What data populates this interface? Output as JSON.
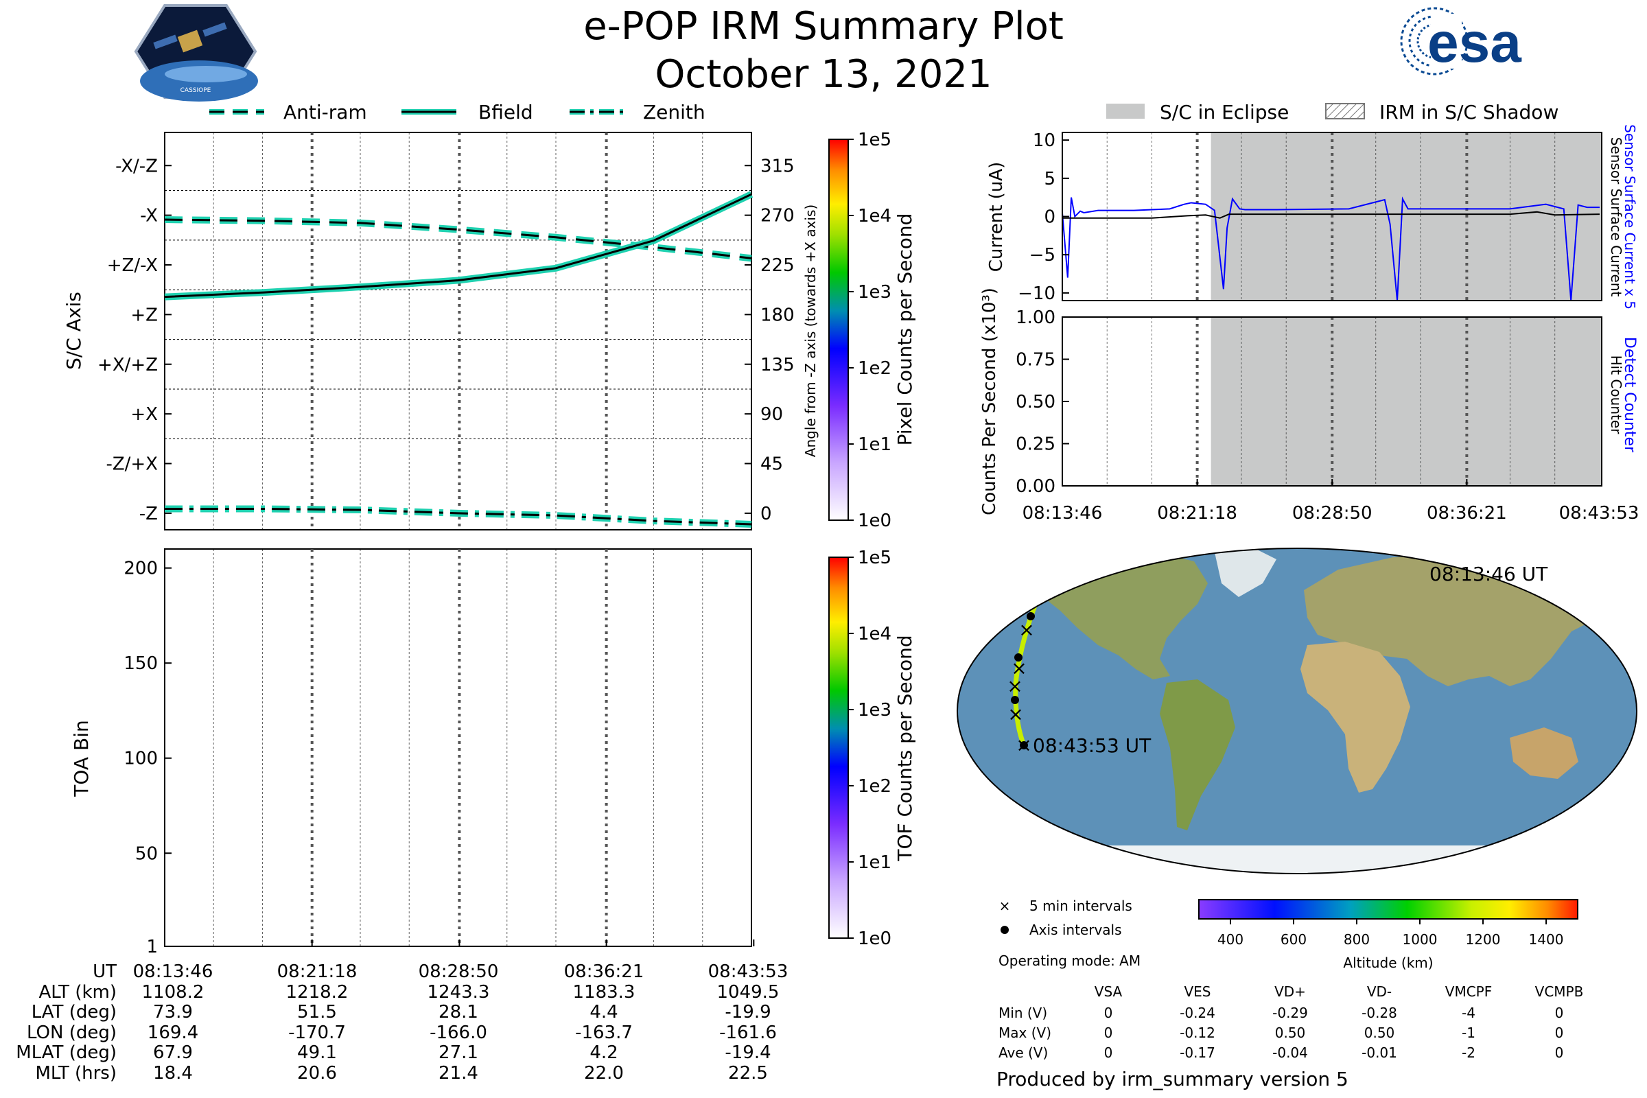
{
  "header": {
    "title": "e-POP IRM Summary Plot",
    "date": "October 13, 2021",
    "mission_logo_text": "CASSIOPE",
    "agency_logo_text": "esa"
  },
  "colors": {
    "trace_teal": "#1fd1b0",
    "current_blue": "#0000ff",
    "eclipse_gray": "#c8c9c9",
    "text": "#000000"
  },
  "legend_top_left": [
    "Anti-ram",
    "Bfield",
    "Zenith"
  ],
  "legend_top_right": [
    "S/C in Eclipse",
    "IRM in S/C Shadow"
  ],
  "chart_data": [
    {
      "id": "sc_axis",
      "type": "line",
      "ylabel": "S/C Axis",
      "ylabel_right": "Angle from -Z axis (towards +X axis)",
      "ylim": [
        -15,
        345
      ],
      "y_category_ticks": [
        "-X/-Z",
        "-X",
        "+Z/-X",
        "+Z",
        "+X/+Z",
        "+X",
        "-Z/+X",
        "-Z"
      ],
      "y_category_values": [
        315,
        270,
        225,
        180,
        135,
        90,
        45,
        0
      ],
      "y_right_ticks": [
        "315",
        "270",
        "225",
        "180",
        "135",
        "90",
        "45",
        "0"
      ],
      "x_minutes": [
        0,
        5,
        10,
        15,
        20,
        25,
        30
      ],
      "series": [
        {
          "name": "Anti-ram",
          "style": "dashed",
          "values": [
            266,
            265,
            263,
            257,
            250,
            241,
            231
          ]
        },
        {
          "name": "Bfield",
          "style": "solid",
          "values": [
            196,
            200,
            205,
            211,
            222,
            247,
            289
          ]
        },
        {
          "name": "Zenith",
          "style": "dashdot",
          "values": [
            4,
            4,
            3,
            0,
            -2,
            -7,
            -10
          ]
        }
      ],
      "colorbar": {
        "label": "Pixel Counts per Second",
        "ticks": [
          "1e5",
          "1e4",
          "1e3",
          "1e2",
          "1e1",
          "1e0"
        ]
      }
    },
    {
      "id": "toa",
      "type": "heatmap",
      "ylabel": "TOA Bin",
      "ylim": [
        1,
        210
      ],
      "yticks": [
        "200",
        "150",
        "100",
        "50",
        "1"
      ],
      "ytick_values": [
        200,
        150,
        100,
        50,
        1
      ],
      "colorbar": {
        "label": "TOF Counts per Second",
        "ticks": [
          "1e5",
          "1e4",
          "1e3",
          "1e2",
          "1e1",
          "1e0"
        ]
      }
    },
    {
      "id": "current",
      "type": "line",
      "ylabel": "Current (uA)",
      "ylim": [
        -11,
        11
      ],
      "yticks": [
        "10",
        "5",
        "0",
        "−5",
        "−10"
      ],
      "ytick_values": [
        10,
        5,
        0,
        -5,
        -10
      ],
      "right_labels": [
        "Sensor Surface Current x 5",
        "Sensor Surface Current"
      ],
      "series": [
        {
          "name": "Sensor Surface Current x 5",
          "color": "#0000ff",
          "x_minutes": [
            0,
            0.3,
            0.5,
            0.7,
            1.0,
            1.2,
            2,
            4,
            6,
            6.8,
            7.2,
            8.0,
            8.5,
            9.0,
            9.2,
            9.5,
            9.9,
            10.2,
            12,
            16,
            18.0,
            18.3,
            18.7,
            19.0,
            19.3,
            20,
            25,
            27,
            28,
            28.4,
            28.8,
            29.3,
            30
          ],
          "values": [
            0.5,
            -8,
            2.5,
            0,
            0.7,
            0.5,
            0.8,
            0.8,
            1.0,
            1.6,
            1.8,
            1.6,
            0.8,
            -9.5,
            -1.5,
            2.3,
            1.0,
            0.9,
            0.9,
            1.0,
            2.2,
            -1,
            -11,
            2.3,
            1.0,
            1.0,
            1.0,
            1.6,
            1.0,
            -11,
            1.5,
            1.2,
            1.2
          ]
        },
        {
          "name": "Sensor Surface Current",
          "color": "#000000",
          "x_minutes": [
            0,
            5,
            7,
            8,
            8.8,
            9.3,
            12,
            18,
            20,
            25,
            26.5,
            27.5,
            30
          ],
          "values": [
            -0.2,
            -0.2,
            0.1,
            0.2,
            -0.2,
            0.3,
            0.3,
            0.3,
            0.3,
            0.3,
            0.6,
            0.2,
            0.3
          ]
        }
      ],
      "eclipse_start_minute": 8.3
    },
    {
      "id": "counts",
      "type": "line",
      "ylabel": "Counts Per Second (x10³)",
      "ylim": [
        0,
        1
      ],
      "yticks": [
        "1.00",
        "0.75",
        "0.50",
        "0.25",
        "0.00"
      ],
      "ytick_values": [
        1.0,
        0.75,
        0.5,
        0.25,
        0.0
      ],
      "right_labels": [
        "Detect Counter",
        "Hit Counter"
      ],
      "series": [
        {
          "name": "Detect Counter",
          "color": "#0000ff",
          "values": [
            0,
            0
          ]
        },
        {
          "name": "Hit Counter",
          "color": "#000000",
          "values": [
            0,
            0
          ]
        }
      ],
      "x_tick_labels": [
        "08:13:46",
        "08:21:18",
        "08:28:50",
        "08:36:21",
        "08:43:53"
      ]
    },
    {
      "id": "orbit_map",
      "type": "scatter",
      "start_label": "08:13:46 UT",
      "end_label": "08:43:53 UT",
      "colorbar": {
        "label": "Altitude (km)",
        "ticks": [
          "400",
          "600",
          "800",
          "1000",
          "1200",
          "1400"
        ],
        "range": [
          300,
          1500
        ]
      }
    }
  ],
  "time_axis": {
    "ticks": [
      "08:13:46",
      "08:21:18",
      "08:28:50",
      "08:36:21",
      "08:43:53"
    ]
  },
  "ephemeris": {
    "row_labels": [
      "UT",
      "ALT (km)",
      "LAT (deg)",
      "LON (deg)",
      "MLAT (deg)",
      "MLT (hrs)"
    ],
    "columns": [
      [
        "08:13:46",
        "1108.2",
        "73.9",
        "169.4",
        "67.9",
        "18.4"
      ],
      [
        "08:21:18",
        "1218.2",
        "51.5",
        "-170.7",
        "49.1",
        "20.6"
      ],
      [
        "08:28:50",
        "1243.3",
        "28.1",
        "-166.0",
        "27.1",
        "21.4"
      ],
      [
        "08:36:21",
        "1183.3",
        "4.4",
        "-163.7",
        "4.2",
        "22.0"
      ],
      [
        "08:43:53",
        "1049.5",
        "-19.9",
        "-161.6",
        "-19.4",
        "22.5"
      ]
    ]
  },
  "map_legend": {
    "five_min": "5 min intervals",
    "axis": "Axis intervals",
    "mode": "Operating mode: AM"
  },
  "voltage_table": {
    "headers": [
      "VSA",
      "VES",
      "VD+",
      "VD-",
      "VMCPF",
      "VCMPB"
    ],
    "rows": [
      {
        "label": "Min (V)",
        "values": [
          "0",
          "-0.24",
          "-0.29",
          "-0.28",
          "-4",
          "0"
        ]
      },
      {
        "label": "Max (V)",
        "values": [
          "0",
          "-0.12",
          "0.50",
          "0.50",
          "-1",
          "0"
        ]
      },
      {
        "label": "Ave (V)",
        "values": [
          "0",
          "-0.17",
          "-0.04",
          "-0.01",
          "-2",
          "0"
        ]
      }
    ]
  },
  "footer": "Produced by irm_summary version 5"
}
